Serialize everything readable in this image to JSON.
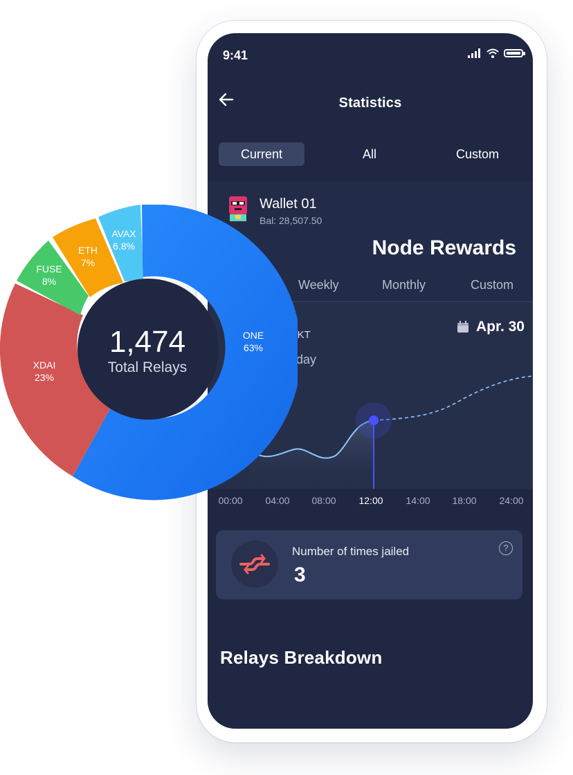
{
  "status_bar": {
    "time": "9:41"
  },
  "header": {
    "title": "Statistics"
  },
  "tabs": [
    {
      "label": "Current",
      "active": true
    },
    {
      "label": "All",
      "active": false
    },
    {
      "label": "Custom",
      "active": false
    }
  ],
  "wallet": {
    "name": "Wallet 01",
    "balance": "Bal: 28,507.50"
  },
  "rewards": {
    "title": "Node Rewards",
    "periods": [
      "Weekly",
      "Monthly",
      "Custom"
    ],
    "token": "OKT",
    "subtitle": "oday",
    "date": "Apr. 30"
  },
  "x_axis": {
    "ticks": [
      "00:00",
      "04:00",
      "08:00",
      "12:00",
      "14:00",
      "18:00",
      "24:00"
    ],
    "active_tick": "12:00"
  },
  "jailed": {
    "label": "Number of times jailed",
    "value": "3",
    "help": "?"
  },
  "relays": {
    "heading": "Relays Breakdown"
  },
  "colors": {
    "screen_bg": "#1f2742",
    "accent_line": "#8bc9ff",
    "marker": "#4a52ff",
    "one": "#1f7fff",
    "xdai": "#d25555",
    "fuse": "#47c96a",
    "eth": "#f7a209",
    "avax": "#4fc7f4",
    "jail_icon": "#f06060"
  },
  "donut": {
    "total": "1,474",
    "total_label": "Total Relays",
    "segments": [
      {
        "name": "ONE",
        "pct": "63%",
        "value": 63
      },
      {
        "name": "XDAI",
        "pct": "23%",
        "value": 23
      },
      {
        "name": "FUSE",
        "pct": "8%",
        "value": 8
      },
      {
        "name": "ETH",
        "pct": "7%",
        "value": 7
      },
      {
        "name": "AVAX",
        "pct": "6.8%",
        "value": 6.8
      }
    ]
  }
}
